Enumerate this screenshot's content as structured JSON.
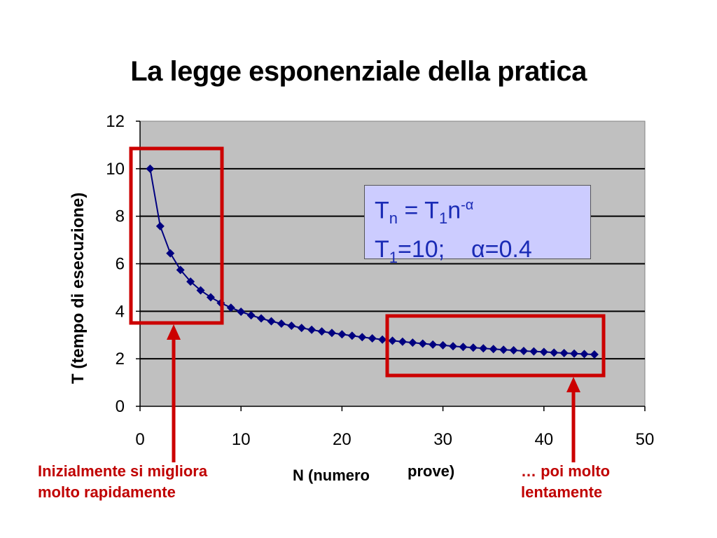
{
  "title": "La legge esponenziale della pratica",
  "chart_data": {
    "type": "line",
    "xlim": [
      0,
      50
    ],
    "ylim": [
      0,
      12
    ],
    "xticks": [
      0,
      10,
      20,
      30,
      40,
      50
    ],
    "yticks": [
      0,
      2,
      4,
      6,
      8,
      10,
      12
    ],
    "xlabel_part1": "N (numero",
    "xlabel_part2": "prove)",
    "ylabel": "T (tempo di esecuzione)",
    "grid": true,
    "series": [
      {
        "x": [
          1,
          2,
          3,
          4,
          5,
          6,
          7,
          8,
          9,
          10,
          11,
          12,
          13,
          14,
          15,
          16,
          17,
          18,
          19,
          20,
          21,
          22,
          23,
          24,
          25,
          26,
          27,
          28,
          29,
          30,
          31,
          32,
          33,
          34,
          35,
          36,
          37,
          38,
          39,
          40,
          41,
          42,
          43,
          44,
          45
        ],
        "values": [
          10.0,
          7.58,
          6.44,
          5.74,
          5.25,
          4.88,
          4.59,
          4.35,
          4.15,
          3.98,
          3.83,
          3.7,
          3.58,
          3.48,
          3.39,
          3.3,
          3.22,
          3.15,
          3.09,
          3.03,
          2.97,
          2.91,
          2.86,
          2.81,
          2.76,
          2.72,
          2.68,
          2.64,
          2.6,
          2.57,
          2.53,
          2.5,
          2.47,
          2.44,
          2.41,
          2.38,
          2.36,
          2.33,
          2.31,
          2.29,
          2.26,
          2.24,
          2.22,
          2.2,
          2.18
        ]
      }
    ],
    "colors": {
      "line": "#000080",
      "plot_bg": "#c0c0c0",
      "highlight": "#cc0000"
    }
  },
  "formula": {
    "line1": {
      "T": "T",
      "sub_n": "n",
      "eq": " = T",
      "sub_1": "1",
      "n": "n",
      "exp": "-α"
    },
    "line2": {
      "T": "T",
      "sub_1": "1",
      "rest": "=10;",
      "alpha": "α",
      "alpha_val": "=0.4"
    }
  },
  "annotations": {
    "left": [
      "Inizialmente si migliora",
      "molto rapidamente"
    ],
    "right": [
      "… poi molto",
      "lentamente"
    ]
  }
}
